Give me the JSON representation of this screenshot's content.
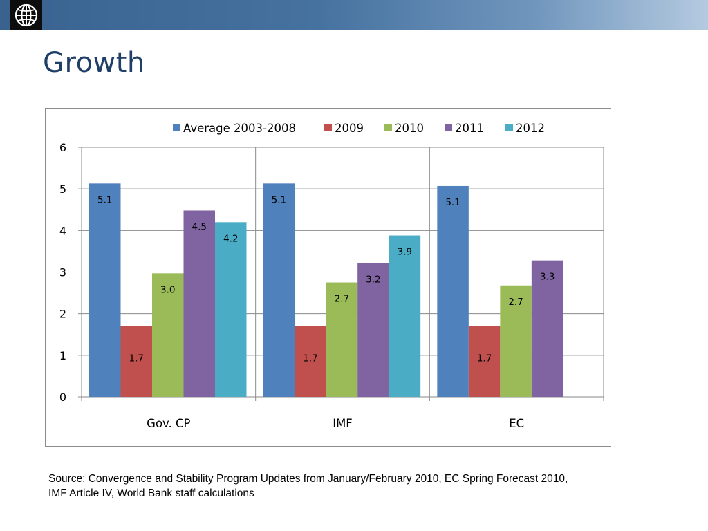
{
  "slide": {
    "title": "Growth",
    "source_line1": "Source: Convergence  and Stability Program Updates from January/February 2010, EC Spring Forecast 2010,",
    "source_line2": "IMF Article IV, World Bank staff calculations"
  },
  "colors": {
    "banner": "#4672a0",
    "title": "#1f3f67"
  },
  "chart_data": {
    "type": "bar",
    "categories": [
      "Gov. CP",
      "IMF",
      "EC"
    ],
    "series": [
      {
        "name": "Average 2003-2008",
        "color": "#4f81bd",
        "values": [
          5.13,
          5.13,
          5.07
        ],
        "labels": [
          "5.1",
          "5.1",
          "5.1"
        ]
      },
      {
        "name": "2009",
        "color": "#c0504d",
        "values": [
          1.7,
          1.7,
          1.7
        ],
        "labels": [
          "1.7",
          "1.7",
          "1.7"
        ]
      },
      {
        "name": "2010",
        "color": "#9bbb59",
        "values": [
          2.97,
          2.75,
          2.68
        ],
        "labels": [
          "3.0",
          "2.7",
          "2.7"
        ]
      },
      {
        "name": "2011",
        "color": "#8064a2",
        "values": [
          4.48,
          3.22,
          3.28
        ],
        "labels": [
          "4.5",
          "3.2",
          "3.3"
        ]
      },
      {
        "name": "2012",
        "color": "#4bacc6",
        "values": [
          4.2,
          3.88,
          null
        ],
        "labels": [
          "4.2",
          "3.9",
          null
        ]
      }
    ],
    "ylim": [
      0,
      6
    ],
    "yticks": [
      "0",
      "1",
      "2",
      "3",
      "4",
      "5",
      "6"
    ],
    "grid": true,
    "legend": "top"
  }
}
